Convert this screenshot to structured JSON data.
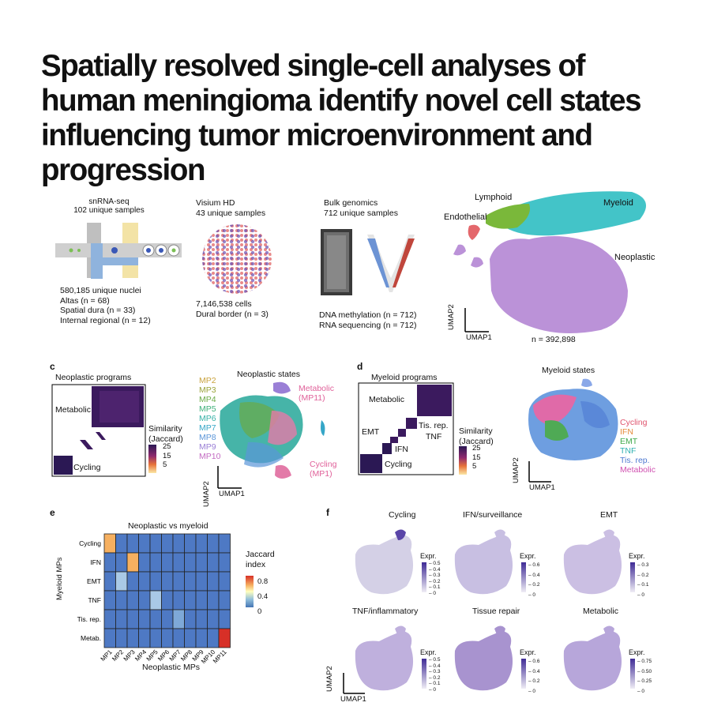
{
  "title_lines": [
    "Spatially resolved single-cell analyses of",
    "human meningioma identify novel cell states",
    "influencing tumor microenvironment and",
    "progression"
  ],
  "panel_a": {
    "snrna": {
      "title": "snRNA-seq",
      "subtitle": "102 unique samples",
      "lines": [
        "580,185 unique nuclei",
        "Altas (n = 68)",
        "Spatial dura (n = 33)",
        "Internal regional (n = 12)"
      ]
    },
    "visium": {
      "title": "Visium HD",
      "subtitle": "43 unique samples",
      "lines": [
        "7,146,538 cells",
        "Dural border (n = 3)"
      ]
    },
    "bulk": {
      "title": "Bulk genomics",
      "subtitle": "712 unique samples",
      "lines": [
        "DNA methylation (n = 712)",
        "RNA sequencing (n = 712)"
      ]
    }
  },
  "panel_b": {
    "labels": {
      "lymphoid": "Lymphoid",
      "myeloid": "Myeloid",
      "endothelial": "Endothelial",
      "neoplastic": "Neoplastic"
    },
    "n_label": "n = 392,898",
    "axis_x": "UMAP1",
    "axis_y": "UMAP2",
    "colors": {
      "lymphoid": "#7ab83a",
      "myeloid": "#43c4c8",
      "endothelial": "#e4686c",
      "neoplastic": "#bb92d8"
    }
  },
  "panel_c": {
    "letter": "c",
    "programs_title": "Neoplastic programs",
    "metabolic": "Metabolic",
    "cycling": "Cycling",
    "similarity": [
      "Similarity",
      "(Jaccard)"
    ],
    "scale": [
      "25",
      "15",
      "5"
    ],
    "states_title": "Neoplastic states",
    "mp_list": [
      {
        "label": "MP2",
        "color": "#c9a23d"
      },
      {
        "label": "MP3",
        "color": "#9aa33a"
      },
      {
        "label": "MP4",
        "color": "#6aaa46"
      },
      {
        "label": "MP5",
        "color": "#3fb07a"
      },
      {
        "label": "MP6",
        "color": "#36b1a6"
      },
      {
        "label": "MP7",
        "color": "#35a6c7"
      },
      {
        "label": "MP8",
        "color": "#5a95d8"
      },
      {
        "label": "MP9",
        "color": "#9a7fd6"
      },
      {
        "label": "MP10",
        "color": "#c36bc2"
      }
    ],
    "metabolic_label": [
      "Metabolic",
      "(MP11)"
    ],
    "cycling_label": [
      "Cycling",
      "(MP1)"
    ],
    "axis_x": "UMAP1",
    "axis_y": "UMAP2"
  },
  "panel_d": {
    "letter": "d",
    "programs_title": "Myeloid programs",
    "metabolic": "Metabolic",
    "tisrep": "Tis. rep.",
    "emt": "EMT",
    "tnf": "TNF",
    "ifn": "IFN",
    "cycling": "Cycling",
    "similarity": [
      "Similarity",
      "(Jaccard)"
    ],
    "scale": [
      "25",
      "15",
      "5"
    ],
    "states_title": "Myeloid states",
    "legend": [
      {
        "label": "Cycling",
        "color": "#e0556e"
      },
      {
        "label": "IFN",
        "color": "#e58a3a"
      },
      {
        "label": "EMT",
        "color": "#3faa4a"
      },
      {
        "label": "TNF",
        "color": "#2fb0b0"
      },
      {
        "label": "Tis. rep.",
        "color": "#4c78d0"
      },
      {
        "label": "Metabolic",
        "color": "#d050b0"
      }
    ],
    "axis_x": "UMAP1",
    "axis_y": "UMAP2"
  },
  "panel_e": {
    "letter": "e",
    "title": "Neoplastic vs myeloid",
    "ylabel": "Myeloid MPs",
    "xlabel": "Neoplastic MPs",
    "rows": [
      "Cycling",
      "IFN",
      "EMT",
      "TNF",
      "Tis. rep.",
      "Metab."
    ],
    "cols": [
      "MP1",
      "MP2",
      "MP3",
      "MP4",
      "MP5",
      "MP6",
      "MP7",
      "MP8",
      "MP9",
      "MP10",
      "MP11"
    ],
    "legend_title": [
      "Jaccard",
      "index"
    ],
    "legend_ticks": [
      "0.8",
      "0.4",
      "0"
    ]
  },
  "chart_data": {
    "type": "heatmap",
    "title": "Neoplastic vs myeloid",
    "xlabel": "Neoplastic MPs",
    "ylabel": "Myeloid MPs",
    "x": [
      "MP1",
      "MP2",
      "MP3",
      "MP4",
      "MP5",
      "MP6",
      "MP7",
      "MP8",
      "MP9",
      "MP10",
      "MP11"
    ],
    "y": [
      "Cycling",
      "IFN",
      "EMT",
      "TNF",
      "Tis. rep.",
      "Metab."
    ],
    "values": [
      [
        0.6,
        0,
        0,
        0,
        0,
        0,
        0,
        0,
        0,
        0,
        0
      ],
      [
        0,
        0,
        0.5,
        0,
        0,
        0,
        0,
        0,
        0,
        0,
        0
      ],
      [
        0,
        0.22,
        0,
        0,
        0,
        0,
        0,
        0,
        0,
        0,
        0
      ],
      [
        0,
        0,
        0,
        0,
        0.2,
        0,
        0,
        0,
        0,
        0,
        0
      ],
      [
        0,
        0,
        0,
        0,
        0,
        0,
        0.12,
        0,
        0,
        0,
        0
      ],
      [
        0,
        0,
        0,
        0,
        0,
        0,
        0,
        0,
        0,
        0,
        0.85
      ]
    ],
    "colorbar_range": [
      0,
      0.8
    ]
  },
  "panel_f": {
    "letter": "f",
    "axis_x": "UMAP1",
    "axis_y": "UMAP2",
    "legend_title": "Expr.",
    "maps": [
      {
        "title": "Cycling",
        "ticks": [
          "0.5",
          "0.4",
          "0.3",
          "0.2",
          "0.1",
          "0"
        ]
      },
      {
        "title": "IFN/surveillance",
        "ticks": [
          "0.6",
          "0.4",
          "0.2",
          "0"
        ]
      },
      {
        "title": "EMT",
        "ticks": [
          "0.3",
          "0.2",
          "0.1",
          "0"
        ]
      },
      {
        "title": "TNF/inflammatory",
        "ticks": [
          "0.5",
          "0.4",
          "0.3",
          "0.2",
          "0.1",
          "0"
        ]
      },
      {
        "title": "Tissue repair",
        "ticks": [
          "0.6",
          "0.4",
          "0.2",
          "0"
        ]
      },
      {
        "title": "Metabolic",
        "ticks": [
          "0.75",
          "0.50",
          "0.25",
          "0"
        ]
      }
    ]
  }
}
